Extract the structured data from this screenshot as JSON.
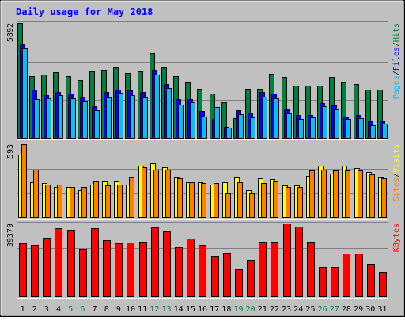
{
  "title": "Daily usage for May 2018",
  "colors": {
    "frame_bg": "#c0c0c0",
    "plot_bg": "#c0c0c0",
    "title": "#0000ff",
    "hits": "#008040",
    "files": "#0000ff",
    "pages": "#00c0ff",
    "visits": "#ffff00",
    "sites": "#ff8000",
    "kbytes": "#ff0000",
    "weekend_label": "#008040",
    "weekday_label": "#000000"
  },
  "chart_data": [
    {
      "type": "bar",
      "name": "hits-files-pages",
      "max_label": "5892",
      "ylim": [
        0,
        5892
      ],
      "x": [
        1,
        2,
        3,
        4,
        5,
        6,
        7,
        8,
        9,
        10,
        11,
        12,
        13,
        14,
        15,
        16,
        17,
        18,
        19,
        20,
        21,
        22,
        23,
        24,
        25,
        26,
        27,
        28,
        29,
        30,
        31
      ],
      "series": [
        {
          "name": "Hits",
          "color_key": "hits",
          "values": [
            5892,
            3200,
            3250,
            3400,
            3200,
            3000,
            3450,
            3500,
            3650,
            3350,
            3450,
            4350,
            3650,
            3200,
            2850,
            2550,
            2300,
            1850,
            1050,
            2550,
            2550,
            3300,
            3150,
            2700,
            2700,
            2700,
            3150,
            2850,
            2800,
            2500,
            2500
          ]
        },
        {
          "name": "Files",
          "color_key": "files",
          "values": [
            4800,
            2500,
            2200,
            2400,
            2300,
            2150,
            1650,
            2400,
            2500,
            2450,
            2400,
            3500,
            2800,
            2000,
            2000,
            1400,
            1000,
            600,
            1450,
            1350,
            2400,
            2300,
            1500,
            1200,
            1200,
            1800,
            1700,
            1100,
            1200,
            900,
            900
          ]
        },
        {
          "name": "Pages",
          "color_key": "pages",
          "values": [
            4600,
            2000,
            2050,
            2200,
            2050,
            1900,
            1450,
            2100,
            2350,
            2200,
            2100,
            3250,
            2600,
            1750,
            1850,
            1150,
            1600,
            550,
            1250,
            1100,
            2150,
            2050,
            1300,
            1000,
            1100,
            1650,
            1500,
            1000,
            1050,
            700,
            750
          ]
        }
      ]
    },
    {
      "type": "bar",
      "name": "visits-sites",
      "max_label": "593",
      "ylim": [
        0,
        593
      ],
      "x": [
        1,
        2,
        3,
        4,
        5,
        6,
        7,
        8,
        9,
        10,
        11,
        12,
        13,
        14,
        15,
        16,
        17,
        18,
        19,
        20,
        21,
        22,
        23,
        24,
        25,
        26,
        27,
        28,
        29,
        30,
        31
      ],
      "series": [
        {
          "name": "Visits",
          "color_key": "visits",
          "values": [
            510,
            290,
            280,
            250,
            250,
            220,
            270,
            300,
            300,
            270,
            420,
            440,
            410,
            330,
            290,
            290,
            270,
            290,
            330,
            220,
            320,
            310,
            260,
            260,
            340,
            420,
            360,
            420,
            400,
            370,
            330
          ]
        },
        {
          "name": "Sites",
          "color_key": "sites",
          "values": [
            593,
            390,
            270,
            270,
            250,
            250,
            300,
            260,
            270,
            330,
            410,
            390,
            390,
            320,
            290,
            280,
            280,
            200,
            290,
            200,
            280,
            300,
            250,
            250,
            380,
            390,
            380,
            380,
            380,
            350,
            320
          ]
        }
      ]
    },
    {
      "type": "bar",
      "name": "kbytes",
      "max_label": "39379",
      "ylim": [
        0,
        39379
      ],
      "x": [
        1,
        2,
        3,
        4,
        5,
        6,
        7,
        8,
        9,
        10,
        11,
        12,
        13,
        14,
        15,
        16,
        17,
        18,
        19,
        20,
        21,
        22,
        23,
        24,
        25,
        26,
        27,
        28,
        29,
        30,
        31
      ],
      "series": [
        {
          "name": "KBytes",
          "color_key": "kbytes",
          "values": [
            28800,
            28000,
            31900,
            36900,
            35900,
            26000,
            36900,
            30600,
            28900,
            29100,
            29700,
            37400,
            35200,
            26700,
            31400,
            28100,
            22000,
            23800,
            14900,
            20100,
            29700,
            29500,
            39379,
            37800,
            29600,
            16100,
            16100,
            23500,
            23400,
            17700,
            13600
          ]
        }
      ]
    }
  ],
  "legends": [
    {
      "parts": [
        {
          "text": "Pages",
          "color_key": "pages"
        },
        {
          "text": "/",
          "color_key": "weekday_label"
        },
        {
          "text": "Files",
          "color_key": "files"
        },
        {
          "text": "/",
          "color_key": "weekday_label"
        },
        {
          "text": "Hits",
          "color_key": "hits"
        }
      ]
    },
    {
      "parts": [
        {
          "text": "Sites",
          "color_key": "sites"
        },
        {
          "text": "/",
          "color_key": "weekday_label"
        },
        {
          "text": "Visits",
          "color_key": "visits"
        }
      ]
    },
    {
      "parts": [
        {
          "text": "KBytes",
          "color_key": "kbytes"
        }
      ]
    }
  ],
  "day_labels": [
    {
      "text": "1",
      "weekend": false
    },
    {
      "text": "2",
      "weekend": false
    },
    {
      "text": "3",
      "weekend": false
    },
    {
      "text": "4",
      "weekend": false
    },
    {
      "text": "5",
      "weekend": true
    },
    {
      "text": "6",
      "weekend": true
    },
    {
      "text": "7",
      "weekend": false
    },
    {
      "text": "8",
      "weekend": false
    },
    {
      "text": "9",
      "weekend": false
    },
    {
      "text": "10",
      "weekend": false
    },
    {
      "text": "11",
      "weekend": false
    },
    {
      "text": "12",
      "weekend": true
    },
    {
      "text": "13",
      "weekend": true
    },
    {
      "text": "14",
      "weekend": false
    },
    {
      "text": "15",
      "weekend": false
    },
    {
      "text": "16",
      "weekend": false
    },
    {
      "text": "17",
      "weekend": false
    },
    {
      "text": "18",
      "weekend": false
    },
    {
      "text": "19",
      "weekend": true
    },
    {
      "text": "20",
      "weekend": true
    },
    {
      "text": "21",
      "weekend": false
    },
    {
      "text": "22",
      "weekend": false
    },
    {
      "text": "23",
      "weekend": false
    },
    {
      "text": "24",
      "weekend": false
    },
    {
      "text": "25",
      "weekend": false
    },
    {
      "text": "26",
      "weekend": true
    },
    {
      "text": "27",
      "weekend": true
    },
    {
      "text": "28",
      "weekend": false
    },
    {
      "text": "29",
      "weekend": false
    },
    {
      "text": "30",
      "weekend": false
    },
    {
      "text": "31",
      "weekend": false
    }
  ]
}
